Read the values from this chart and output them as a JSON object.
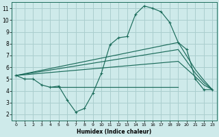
{
  "background_color": "#ceeaea",
  "grid_color": "#aacece",
  "line_color": "#1a6b5a",
  "xlabel": "Humidex (Indice chaleur)",
  "xlim": [
    -0.5,
    23.5
  ],
  "ylim": [
    1.5,
    11.5
  ],
  "xticks": [
    0,
    1,
    2,
    3,
    4,
    5,
    6,
    7,
    8,
    9,
    10,
    11,
    12,
    13,
    14,
    15,
    16,
    17,
    18,
    19,
    20,
    21,
    22,
    23
  ],
  "yticks": [
    2,
    3,
    4,
    5,
    6,
    7,
    8,
    9,
    10,
    11
  ],
  "series1_x": [
    0,
    1,
    2,
    3,
    4,
    5,
    6,
    7,
    8,
    9,
    10,
    11,
    12,
    13,
    14,
    15,
    16,
    17,
    18,
    19,
    20,
    21,
    22,
    23
  ],
  "series1_y": [
    5.3,
    5.0,
    5.0,
    4.5,
    4.3,
    4.4,
    3.2,
    2.2,
    2.5,
    3.8,
    5.5,
    7.9,
    8.5,
    8.6,
    10.5,
    11.2,
    11.0,
    10.7,
    9.8,
    8.1,
    7.5,
    5.0,
    4.1,
    4.1
  ],
  "series2_x": [
    0,
    19,
    21,
    22,
    23
  ],
  "series2_y": [
    5.3,
    8.1,
    5.8,
    4.9,
    4.1
  ],
  "series3_x": [
    0,
    19,
    21,
    22,
    23
  ],
  "series3_y": [
    5.3,
    7.5,
    5.5,
    4.7,
    4.1
  ],
  "series4_x": [
    0,
    19,
    21,
    22,
    23
  ],
  "series4_y": [
    5.3,
    6.5,
    5.2,
    4.5,
    4.1
  ],
  "series5_x": [
    4,
    19
  ],
  "series5_y": [
    4.3,
    4.3
  ]
}
